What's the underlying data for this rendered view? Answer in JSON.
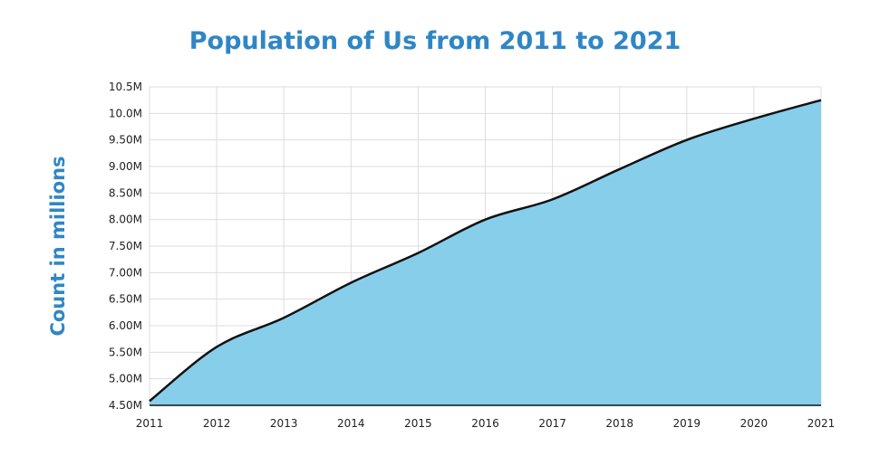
{
  "chart_data": {
    "type": "area",
    "title": "Population of Us from 2011 to 2021",
    "xlabel": "",
    "ylabel": "Count in millions",
    "x": [
      "2011",
      "2012",
      "2013",
      "2014",
      "2015",
      "2016",
      "2017",
      "2018",
      "2019",
      "2020",
      "2021"
    ],
    "series": [
      {
        "name": "Population",
        "values": [
          4.58,
          5.6,
          6.15,
          6.81,
          7.37,
          8.0,
          8.38,
          8.95,
          9.5,
          9.9,
          10.25
        ]
      }
    ],
    "ylim": [
      4.5,
      10.5
    ],
    "yticks": [
      "4.50M",
      "5.00M",
      "5.50M",
      "6.00M",
      "6.50M",
      "7.00M",
      "7.50M",
      "8.00M",
      "8.50M",
      "9.00M",
      "9.50M",
      "10.0M",
      "10.5M"
    ],
    "grid": true,
    "colors": {
      "title": "#2f86c5",
      "fill": "#87ceeb",
      "line": "#111111",
      "grid": "#dddddd"
    }
  }
}
